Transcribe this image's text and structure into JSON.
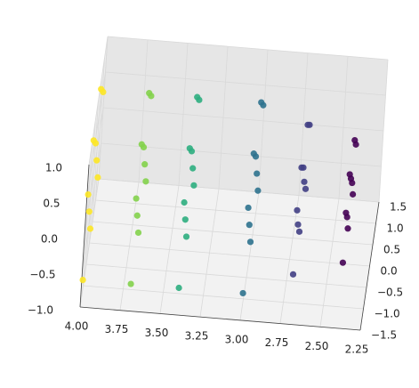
{
  "chart_data": {
    "type": "scatter3d",
    "cmap": "viridis",
    "x": [
      4.0,
      4.0,
      4.0,
      4.0,
      4.0,
      4.0,
      4.0,
      4.0,
      4.0,
      4.0,
      3.7,
      3.7,
      3.7,
      3.7,
      3.7,
      3.7,
      3.7,
      3.7,
      3.7,
      3.7,
      3.4,
      3.4,
      3.4,
      3.4,
      3.4,
      3.4,
      3.4,
      3.4,
      3.4,
      3.4,
      3.0,
      3.0,
      3.0,
      3.0,
      3.0,
      3.0,
      3.0,
      3.0,
      3.0,
      3.0,
      2.7,
      2.7,
      2.7,
      2.7,
      2.7,
      2.7,
      2.7,
      2.7,
      2.7,
      2.7,
      2.4,
      2.4,
      2.4,
      2.4,
      2.4,
      2.4,
      2.4,
      2.4,
      2.4,
      2.4
    ],
    "y": [
      -1.2,
      -1.2,
      -0.6,
      -0.6,
      0,
      0,
      0.6,
      0.6,
      1.2,
      1.2,
      -1.2,
      -1.2,
      -0.6,
      -0.6,
      0,
      0,
      0.6,
      0.6,
      1.2,
      1.2,
      -1.2,
      -1.2,
      -0.6,
      -0.6,
      0,
      0,
      0.6,
      0.6,
      1.2,
      1.2,
      -1.2,
      -1.2,
      -0.6,
      -0.6,
      0,
      0,
      0.6,
      0.6,
      1.2,
      1.2,
      -1.0,
      -1.0,
      -0.5,
      -0.5,
      0,
      0,
      0.5,
      0.5,
      1.0,
      1.0,
      -0.8,
      -0.8,
      -0.4,
      -0.4,
      0,
      0,
      0.4,
      0.4,
      0.8,
      0.8
    ],
    "z": [
      -0.8,
      0.4,
      -0.2,
      0.8,
      -0.8,
      0.4,
      -0.2,
      0.8,
      -0.8,
      0.4,
      -0.8,
      0.4,
      -0.2,
      0.8,
      -0.8,
      0.4,
      -0.2,
      0.8,
      -0.8,
      0.4,
      -0.8,
      0.4,
      -0.2,
      0.8,
      -0.8,
      0.4,
      -0.2,
      0.8,
      -0.8,
      0.4,
      -0.8,
      0.4,
      -0.2,
      0.8,
      -0.8,
      0.4,
      -0.2,
      0.8,
      -0.8,
      0.4,
      -0.6,
      0.3,
      -0.2,
      0.6,
      -0.6,
      0.3,
      -0.2,
      0.6,
      -0.6,
      0.3,
      -0.5,
      0.2,
      -0.1,
      0.5,
      -0.5,
      0.2,
      -0.1,
      0.5,
      -0.5,
      0.2
    ],
    "xlim": [
      2.25,
      4.0
    ],
    "ylim": [
      -1.5,
      1.5
    ],
    "zlim": [
      -1.0,
      1.0
    ],
    "xticks": [
      2.25,
      {
        "value": 2.5,
        "label": "2.50"
      },
      2.75,
      {
        "value": 3.0,
        "label": "3.00"
      },
      3.25,
      {
        "value": 3.5,
        "label": "3.50"
      },
      3.75,
      {
        "value": 4.0,
        "label": "4.00"
      }
    ],
    "yticks": [
      {
        "value": -1.5,
        "label": "−1.5"
      },
      {
        "value": -1.0,
        "label": "−1.0"
      },
      {
        "value": -0.5,
        "label": "−0.5"
      },
      {
        "value": 0.0,
        "label": "0.0"
      },
      0.5,
      {
        "value": 1.0,
        "label": "1.0"
      },
      1.5
    ],
    "zticks": [
      {
        "value": -1.0,
        "label": "−1.0"
      },
      {
        "value": -0.5,
        "label": "−0.5"
      },
      {
        "value": 0.0,
        "label": "0.0"
      },
      0.5,
      {
        "value": 1.0,
        "label": "1.0"
      }
    ],
    "grid": true
  }
}
